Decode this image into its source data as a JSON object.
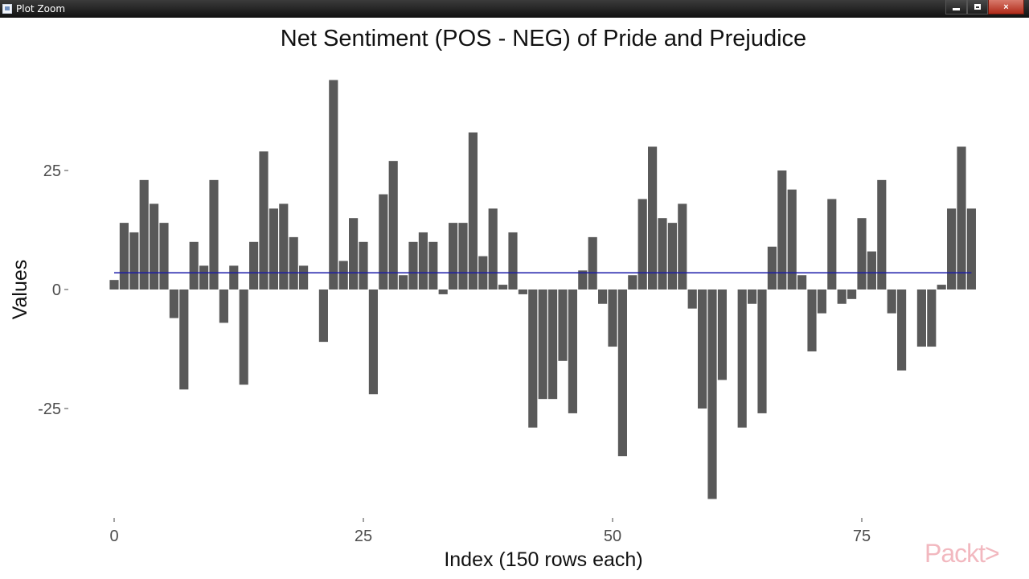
{
  "window": {
    "title": "Plot Zoom",
    "controls": {
      "minimize": "minimize-icon",
      "maximize": "maximize-icon",
      "close": "×"
    }
  },
  "watermark": "Packt>",
  "chart_data": {
    "type": "bar",
    "title": "Net Sentiment (POS - NEG) of Pride and Prejudice",
    "xlabel": "Index (150 rows each)",
    "ylabel": "Values",
    "xlim": [
      -1,
      87
    ],
    "ylim": [
      -45,
      45
    ],
    "x_ticks": [
      0,
      25,
      50,
      75
    ],
    "y_ticks": [
      25,
      0,
      -25
    ],
    "x_tick_labels": [
      "0",
      "25",
      "50",
      "75"
    ],
    "y_tick_labels": [
      "25",
      "0",
      "-25"
    ],
    "grid": false,
    "bar_color": "#595959",
    "mean_line": {
      "y": 3.5,
      "color": "#1a1aa8"
    },
    "x": [
      0,
      1,
      2,
      3,
      4,
      5,
      6,
      7,
      8,
      9,
      10,
      11,
      12,
      13,
      14,
      15,
      16,
      17,
      18,
      19,
      20,
      21,
      22,
      23,
      24,
      25,
      26,
      27,
      28,
      29,
      30,
      31,
      32,
      33,
      34,
      35,
      36,
      37,
      38,
      39,
      40,
      41,
      42,
      43,
      44,
      45,
      46,
      47,
      48,
      49,
      50,
      51,
      52,
      53,
      54,
      55,
      56,
      57,
      58,
      59,
      60,
      61,
      62,
      63,
      64,
      65,
      66,
      67,
      68,
      69,
      70,
      71,
      72,
      73,
      74,
      75,
      76,
      77,
      78,
      79,
      80,
      81,
      82,
      83,
      84,
      85,
      86
    ],
    "values": [
      2,
      14,
      12,
      23,
      18,
      14,
      -6,
      -21,
      10,
      5,
      23,
      -7,
      5,
      -20,
      10,
      29,
      17,
      18,
      11,
      5,
      0,
      -11,
      44,
      6,
      15,
      10,
      -22,
      20,
      27,
      3,
      10,
      12,
      10,
      -1,
      14,
      14,
      33,
      7,
      17,
      1,
      12,
      -1,
      -29,
      -23,
      -23,
      -15,
      -26,
      4,
      11,
      -3,
      -12,
      -35,
      3,
      19,
      30,
      15,
      14,
      18,
      -4,
      -25,
      -44,
      -19,
      0,
      -29,
      -3,
      -26,
      9,
      25,
      21,
      3,
      -13,
      -5,
      19,
      -3,
      -2,
      15,
      8,
      23,
      -5,
      -17,
      0,
      -12,
      -12,
      1,
      17,
      30,
      17
    ]
  }
}
